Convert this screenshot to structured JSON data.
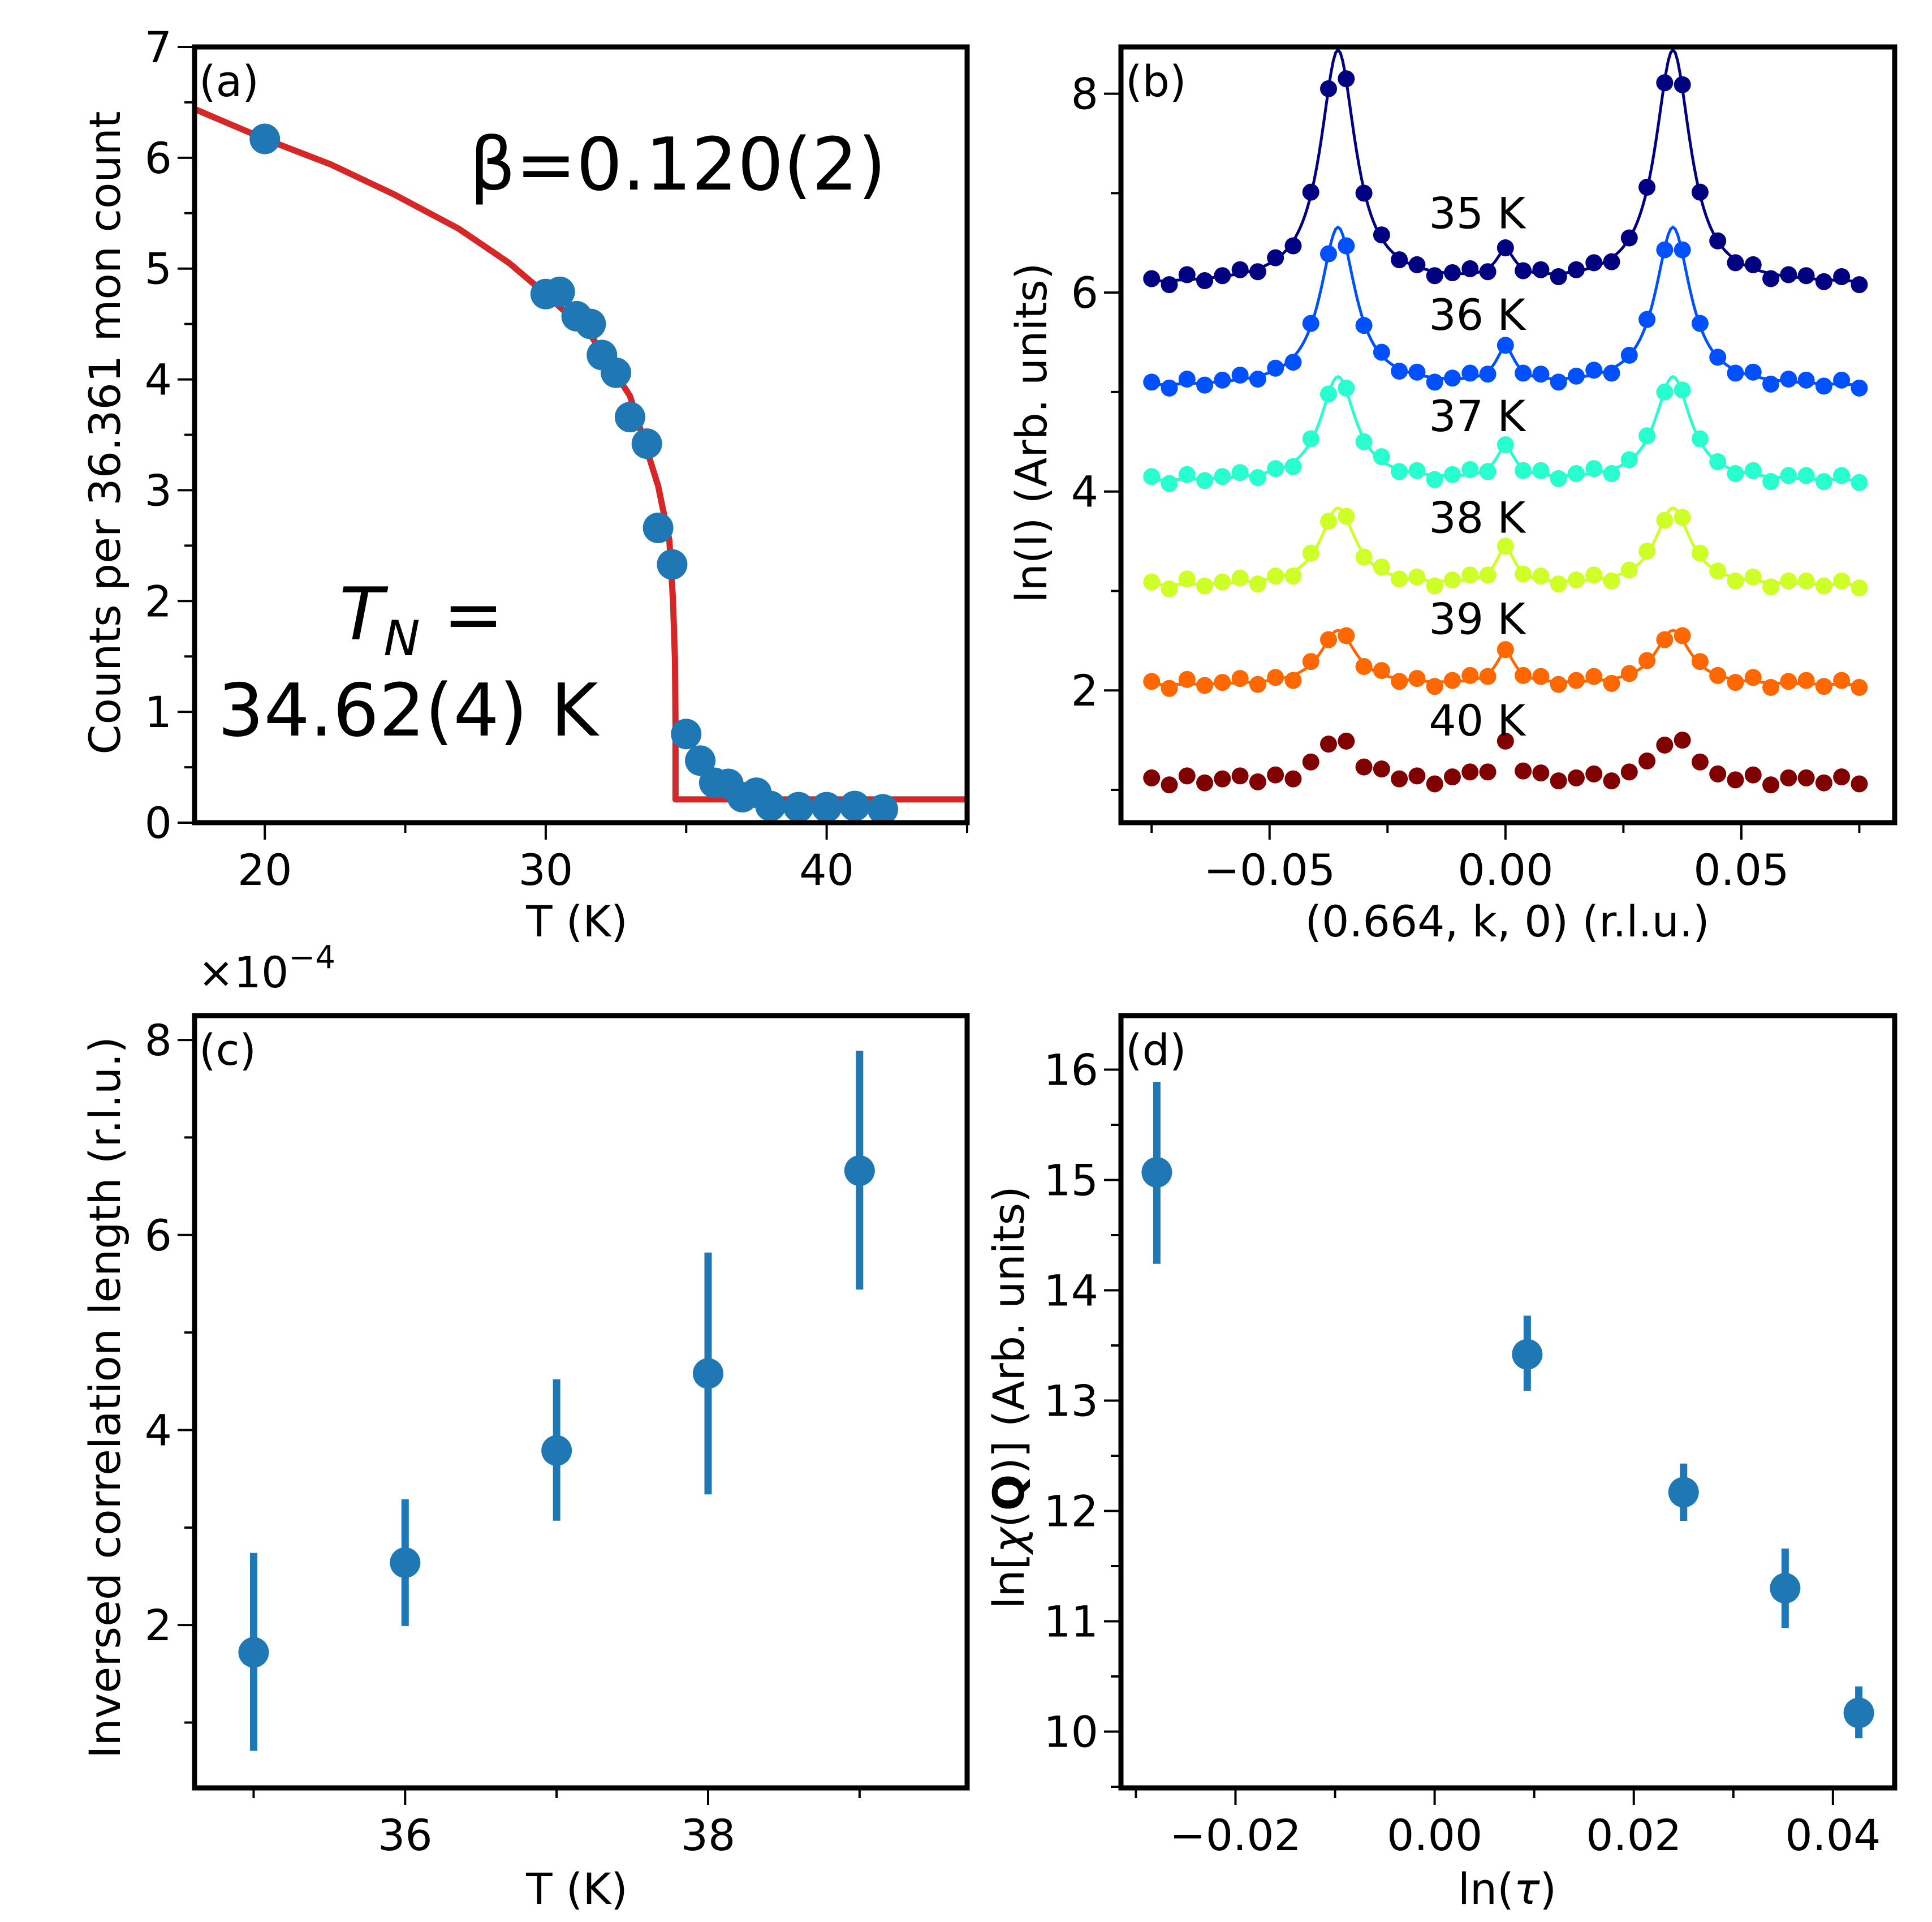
{
  "figure": {
    "panels": [
      "a",
      "b",
      "c",
      "d"
    ]
  },
  "chart_data": [
    {
      "id": "a",
      "type": "scatter",
      "panel_tag": "(a)",
      "title": "",
      "xlabel": "T (K)",
      "ylabel": "Counts per 36.361 mon count",
      "xlim": [
        17.5,
        45
      ],
      "ylim": [
        0,
        7
      ],
      "xticks": [
        20,
        30,
        40
      ],
      "xtick_labels": [
        "20",
        "30",
        "40"
      ],
      "xminor": [
        25,
        35,
        45
      ],
      "yticks": [
        0,
        1,
        2,
        3,
        4,
        5,
        6,
        7
      ],
      "ytick_labels": [
        "0",
        "1",
        "2",
        "3",
        "4",
        "5",
        "6",
        "7"
      ],
      "yminor": [
        0.5,
        1.5,
        2.5,
        3.5,
        4.5,
        5.5,
        6.5
      ],
      "grid": false,
      "annotations": {
        "beta": "β=0.120(2)",
        "tn_line1": "T",
        "tn_sub": "N",
        "tn_eq": " =",
        "tn_line2": "34.62(4) K"
      },
      "series": [
        {
          "name": "data",
          "kind": "points",
          "color": "#1f77b4",
          "x": [
            20.0,
            30.0,
            30.5,
            31.1,
            31.6,
            32.0,
            32.5,
            33.0,
            33.6,
            34.0,
            34.5,
            35.0,
            35.5,
            36.0,
            36.5,
            37.0,
            37.5,
            38.0,
            39.0,
            40.0,
            41.0,
            42.0
          ],
          "y": [
            6.17,
            4.77,
            4.79,
            4.57,
            4.5,
            4.22,
            4.06,
            3.66,
            3.42,
            2.66,
            2.33,
            0.8,
            0.56,
            0.36,
            0.35,
            0.23,
            0.27,
            0.15,
            0.14,
            0.14,
            0.15,
            0.12
          ]
        },
        {
          "name": "fit",
          "kind": "line",
          "color": "#d62728",
          "x": [
            17.5,
            20.0,
            22.35,
            24.6,
            26.9,
            28.7,
            30.0,
            31.6,
            33.0,
            34.0,
            34.4,
            34.53,
            34.6,
            34.62,
            34.62,
            45.0
          ],
          "y": [
            6.44,
            6.17,
            5.94,
            5.67,
            5.36,
            5.05,
            4.77,
            4.4,
            3.85,
            3.04,
            2.55,
            2.01,
            1.47,
            0.9,
            0.21,
            0.21
          ]
        }
      ]
    },
    {
      "id": "b",
      "type": "line",
      "panel_tag": "(b)",
      "title": "",
      "xlabel": "(0.664, k, 0) (r.l.u.)",
      "ylabel": "ln(I) (Arb. units)",
      "xlim": [
        -0.0815,
        0.0825
      ],
      "ylim": [
        0.67,
        8.47
      ],
      "xticks": [
        -0.05,
        0.0,
        0.05
      ],
      "xtick_labels": [
        "−0.05",
        "0.00",
        "0.05"
      ],
      "xminor": [
        -0.075,
        -0.025,
        0.025,
        0.075
      ],
      "yticks": [
        2,
        4,
        6,
        8
      ],
      "ytick_labels": [
        "2",
        "4",
        "6",
        "8"
      ],
      "yminor": [
        1,
        3,
        5,
        7
      ],
      "grid": false,
      "x": [
        -0.075,
        -0.07125,
        -0.0675,
        -0.06375,
        -0.06,
        -0.05625,
        -0.0525,
        -0.04875,
        -0.045,
        -0.04125,
        -0.0375,
        -0.03375,
        -0.03,
        -0.02625,
        -0.0225,
        -0.01875,
        -0.015,
        -0.01125,
        -0.0075,
        -0.00375,
        0.0,
        0.00375,
        0.0075,
        0.01125,
        0.015,
        0.01875,
        0.0225,
        0.02625,
        0.03,
        0.03375,
        0.0375,
        0.04125,
        0.045,
        0.04875,
        0.0525,
        0.05625,
        0.06,
        0.06375,
        0.0675,
        0.07125,
        0.075
      ],
      "fit_model": {
        "form": "bg + A*[L(x+q)+L(x-q)] + C*L0(x)",
        "q": 0.0355,
        "w": 0.0045,
        "wc": 0.0025
      },
      "series": [
        {
          "name": "35 K",
          "label": "35 K",
          "label_x": -0.006,
          "label_y": 6.8,
          "color": "#000080",
          "fit": true,
          "bg": 6.08,
          "A": 2.35,
          "C": 0.28,
          "y": [
            6.14,
            6.08,
            6.18,
            6.12,
            6.17,
            6.23,
            6.21,
            6.35,
            6.47,
            7.01,
            8.05,
            8.15,
            7.0,
            6.58,
            6.33,
            6.28,
            6.17,
            6.2,
            6.24,
            6.21,
            6.45,
            6.22,
            6.23,
            6.16,
            6.23,
            6.3,
            6.31,
            6.55,
            7.06,
            8.11,
            8.09,
            7.01,
            6.52,
            6.3,
            6.28,
            6.14,
            6.18,
            6.17,
            6.11,
            6.16,
            6.08
          ]
        },
        {
          "name": "36 K",
          "label": "36 K",
          "label_x": -0.006,
          "label_y": 5.78,
          "color": "#0050ff",
          "fit": true,
          "bg": 5.05,
          "A": 1.6,
          "C": 0.35,
          "y": [
            5.1,
            5.04,
            5.13,
            5.07,
            5.12,
            5.17,
            5.13,
            5.24,
            5.3,
            5.69,
            6.39,
            6.47,
            5.67,
            5.4,
            5.21,
            5.2,
            5.1,
            5.14,
            5.19,
            5.18,
            5.47,
            5.19,
            5.18,
            5.1,
            5.16,
            5.22,
            5.19,
            5.37,
            5.73,
            6.43,
            6.43,
            5.69,
            5.35,
            5.19,
            5.2,
            5.08,
            5.13,
            5.12,
            5.06,
            5.12,
            5.04
          ]
        },
        {
          "name": "37 K",
          "label": "37 K",
          "label_x": -0.006,
          "label_y": 4.76,
          "color": "#29ffce",
          "fit": true,
          "bg": 4.1,
          "A": 1.05,
          "C": 0.32,
          "y": [
            4.15,
            4.08,
            4.17,
            4.11,
            4.15,
            4.19,
            4.14,
            4.23,
            4.25,
            4.53,
            4.98,
            5.04,
            4.5,
            4.35,
            4.2,
            4.21,
            4.12,
            4.17,
            4.22,
            4.2,
            4.47,
            4.21,
            4.21,
            4.13,
            4.18,
            4.23,
            4.18,
            4.32,
            4.56,
            5.0,
            5.02,
            4.53,
            4.3,
            4.18,
            4.21,
            4.1,
            4.16,
            4.16,
            4.1,
            4.16,
            4.09
          ]
        },
        {
          "name": "38 K",
          "label": "38 K",
          "label_x": -0.006,
          "label_y": 3.74,
          "color": "#ceff29",
          "fit": true,
          "bg": 3.05,
          "A": 0.78,
          "C": 0.36,
          "y": [
            3.09,
            3.02,
            3.12,
            3.05,
            3.09,
            3.13,
            3.07,
            3.15,
            3.15,
            3.38,
            3.7,
            3.75,
            3.34,
            3.24,
            3.12,
            3.14,
            3.05,
            3.11,
            3.16,
            3.16,
            3.45,
            3.17,
            3.15,
            3.07,
            3.11,
            3.16,
            3.1,
            3.21,
            3.4,
            3.71,
            3.74,
            3.38,
            3.2,
            3.1,
            3.14,
            3.04,
            3.1,
            3.1,
            3.05,
            3.1,
            3.03
          ]
        },
        {
          "name": "39 K",
          "label": "39 K",
          "label_x": -0.006,
          "label_y": 2.72,
          "color": "#ff6800",
          "fit": true,
          "bg": 2.05,
          "A": 0.55,
          "C": 0.32,
          "y": [
            2.09,
            2.02,
            2.11,
            2.05,
            2.08,
            2.12,
            2.06,
            2.13,
            2.1,
            2.29,
            2.51,
            2.55,
            2.24,
            2.2,
            2.09,
            2.12,
            2.04,
            2.1,
            2.15,
            2.14,
            2.41,
            2.15,
            2.14,
            2.06,
            2.1,
            2.14,
            2.07,
            2.17,
            2.3,
            2.51,
            2.55,
            2.29,
            2.15,
            2.08,
            2.13,
            2.03,
            2.09,
            2.1,
            2.04,
            2.1,
            2.03
          ]
        },
        {
          "name": "40 K",
          "label": "40 K",
          "label_x": -0.006,
          "label_y": 1.7,
          "color": "#800000",
          "fit": false,
          "bg": 1.08,
          "A": 0.45,
          "C": 0.38,
          "y": [
            1.12,
            1.05,
            1.14,
            1.07,
            1.11,
            1.14,
            1.08,
            1.15,
            1.11,
            1.28,
            1.46,
            1.49,
            1.23,
            1.21,
            1.11,
            1.14,
            1.06,
            1.13,
            1.18,
            1.18,
            1.49,
            1.19,
            1.17,
            1.09,
            1.12,
            1.16,
            1.09,
            1.18,
            1.29,
            1.45,
            1.5,
            1.28,
            1.16,
            1.1,
            1.15,
            1.05,
            1.12,
            1.12,
            1.07,
            1.13,
            1.06
          ]
        }
      ]
    },
    {
      "id": "c",
      "type": "scatter",
      "panel_tag": "(c)",
      "title": "",
      "xlabel": "T (K)",
      "ylabel": "Inversed correlation length (r.l.u.)",
      "offset_text": "×10",
      "offset_exp": "−4",
      "xlim": [
        34.61,
        39.71
      ],
      "ylim": [
        0.33,
        8.25
      ],
      "xticks": [
        36,
        38
      ],
      "xtick_labels": [
        "36",
        "38"
      ],
      "xminor": [
        35,
        37,
        39
      ],
      "yticks": [
        2,
        4,
        6,
        8
      ],
      "ytick_labels": [
        "2",
        "4",
        "6",
        "8"
      ],
      "yminor": [
        1,
        3,
        5,
        7
      ],
      "grid": false,
      "series": [
        {
          "name": "inverse correlation length",
          "color": "#1f77b4",
          "x": [
            35,
            36,
            37,
            38,
            39
          ],
          "y": [
            1.72,
            2.64,
            3.79,
            4.58,
            6.66
          ],
          "y_err_low": [
            0.71,
            1.99,
            3.07,
            3.34,
            5.44
          ],
          "y_err_high": [
            2.74,
            3.29,
            4.52,
            5.82,
            7.89
          ]
        }
      ]
    },
    {
      "id": "d",
      "type": "scatter",
      "panel_tag": "(d)",
      "title": "",
      "xlabel_pre": "ln(",
      "xlabel_sym": "τ",
      "xlabel_post": ")",
      "ylabel_pre": "ln[",
      "ylabel_chi": "χ",
      "ylabel_open": "(",
      "ylabel_q": "Q",
      "ylabel_post": ")] (Arb. units)",
      "xlim": [
        -0.0315,
        0.0462
      ],
      "ylim": [
        9.49,
        16.49
      ],
      "xticks": [
        -0.02,
        0.0,
        0.02,
        0.04
      ],
      "xtick_labels": [
        "−0.02",
        "0.00",
        "0.02",
        "0.04"
      ],
      "xminor": [
        -0.03,
        -0.01,
        0.01,
        0.03
      ],
      "yticks": [
        10,
        11,
        12,
        13,
        14,
        15,
        16
      ],
      "ytick_labels": [
        "10",
        "11",
        "12",
        "13",
        "14",
        "15",
        "16"
      ],
      "yminor": [
        9.5,
        10.5,
        11.5,
        12.5,
        13.5,
        14.5,
        15.5,
        16.5
      ],
      "grid": false,
      "series": [
        {
          "name": "ln chi(Q)",
          "color": "#1f77b4",
          "x": [
            -0.0279,
            0.0093,
            0.025,
            0.0352,
            0.0426
          ],
          "y": [
            15.07,
            13.42,
            12.17,
            11.3,
            10.17
          ],
          "y_err_low": [
            14.24,
            13.09,
            11.91,
            10.94,
            9.94
          ],
          "y_err_high": [
            15.89,
            13.77,
            12.43,
            11.66,
            10.41
          ]
        }
      ]
    }
  ]
}
